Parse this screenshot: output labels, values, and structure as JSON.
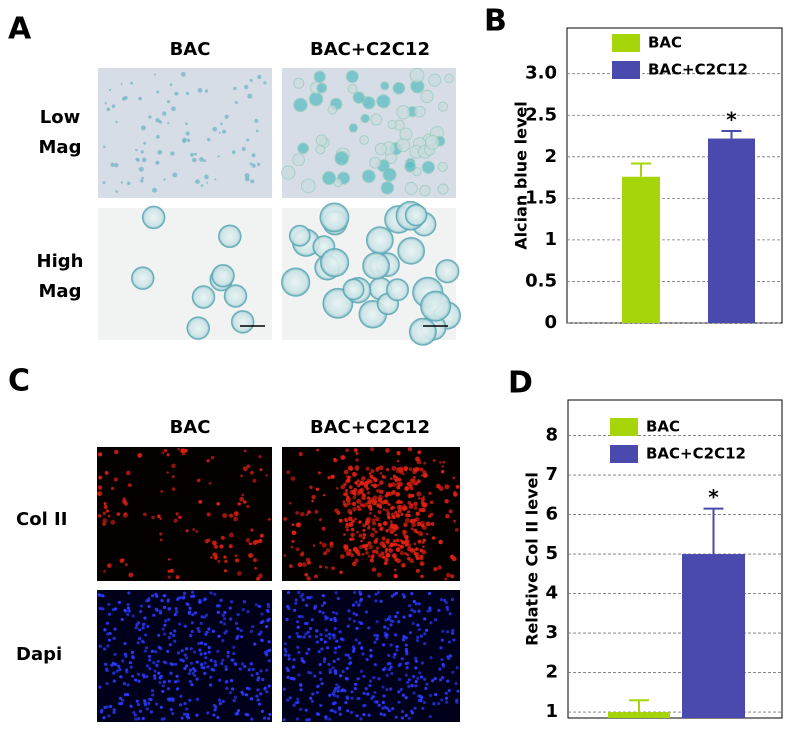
{
  "panels": {
    "letters": [
      "A",
      "B",
      "C",
      "D"
    ],
    "histology": {
      "columns": [
        "BAC",
        "BAC+C2C12"
      ],
      "rows": [
        [
          "Low",
          "Mag"
        ],
        [
          "High",
          "Mag"
        ]
      ]
    },
    "fluorescence": {
      "columns": [
        "BAC",
        "BAC+C2C12"
      ],
      "rows": [
        "Col II",
        "Dapi"
      ]
    }
  },
  "chart_data": [
    {
      "type": "bar",
      "y_label": "Alcian blue level",
      "annotation": "*",
      "series": [
        {
          "name": "BAC",
          "color": "#a6d609",
          "values": [
            1.76
          ],
          "errors": [
            0.16
          ]
        },
        {
          "name": "BAC+C2C12",
          "color": "#4a4aae",
          "values": [
            2.22
          ],
          "errors": [
            0.09
          ]
        }
      ],
      "ylim": [
        0,
        3.55
      ],
      "yticks": [
        0,
        0.5,
        1,
        1.5,
        2,
        2.5,
        {
          "value": 3,
          "label": "3.0"
        }
      ],
      "grid": true
    },
    {
      "type": "bar",
      "y_label": "Relative Col II level",
      "annotation": "*",
      "series": [
        {
          "name": "BAC",
          "color": "#a6d609",
          "values": [
            1.0
          ],
          "errors": [
            0.3
          ]
        },
        {
          "name": "BAC+C2C12",
          "color": "#4a4aae",
          "values": [
            5.0
          ],
          "errors": [
            1.15
          ]
        }
      ],
      "ylim": [
        0.85,
        8.9
      ],
      "yticks": [
        1,
        2,
        3,
        4,
        5,
        6,
        7,
        8
      ],
      "grid": true
    }
  ]
}
